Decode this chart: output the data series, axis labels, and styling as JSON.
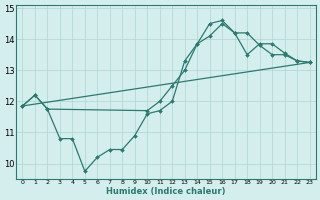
{
  "xlabel": "Humidex (Indice chaleur)",
  "bg_color": "#d4eeed",
  "grid_color": "#b0d5d0",
  "line_color": "#2a7a70",
  "xlim": [
    -0.5,
    23.5
  ],
  "ylim": [
    9.5,
    15.1
  ],
  "yticks": [
    10,
    11,
    12,
    13,
    14,
    15
  ],
  "xticks": [
    0,
    1,
    2,
    3,
    4,
    5,
    6,
    7,
    8,
    9,
    10,
    11,
    12,
    13,
    14,
    15,
    16,
    17,
    18,
    19,
    20,
    21,
    22,
    23
  ],
  "series1_x": [
    0,
    1,
    2,
    3,
    4,
    5,
    6,
    7,
    8,
    9,
    10,
    11,
    12,
    13,
    14,
    15,
    16,
    17,
    18,
    19,
    20,
    21,
    22,
    23
  ],
  "series1_y": [
    11.85,
    12.2,
    11.75,
    10.8,
    10.8,
    9.75,
    10.2,
    10.45,
    10.45,
    10.9,
    11.6,
    11.7,
    12.0,
    13.3,
    13.85,
    14.5,
    14.6,
    14.2,
    14.2,
    13.8,
    13.5,
    13.5,
    13.3,
    13.25
  ],
  "series2_x": [
    0,
    23
  ],
  "series2_y": [
    11.85,
    13.25
  ],
  "series3_x": [
    0,
    1,
    2,
    10,
    11,
    12,
    13,
    14,
    15,
    16,
    17,
    18,
    19,
    20,
    21,
    22,
    23
  ],
  "series3_y": [
    11.85,
    12.2,
    11.75,
    11.7,
    12.0,
    12.5,
    13.0,
    13.85,
    14.1,
    14.5,
    14.2,
    13.5,
    13.85,
    13.85,
    13.55,
    13.3,
    13.25
  ]
}
